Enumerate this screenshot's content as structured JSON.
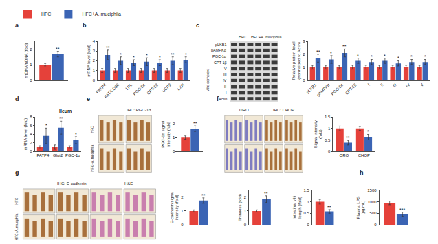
{
  "chart_data": [
    {
      "type": "bar",
      "label": "a",
      "ylabel": "mtDNA/nDNA (fold)",
      "categories": [
        null
      ],
      "grid": false,
      "ylim": [
        0,
        2.5
      ],
      "yticks": [
        0,
        1,
        2
      ],
      "series": [
        {
          "name": "HFC",
          "color": "#e5413a",
          "values": [
            1.0
          ],
          "errors": [
            0.08
          ]
        },
        {
          "name": "HFC+A. muciphila",
          "color": "#3b64b4",
          "values": [
            1.68
          ],
          "errors": [
            0.18
          ]
        }
      ],
      "annotations": [
        "**"
      ]
    },
    {
      "type": "bar",
      "label": "b",
      "ylabel": "mRNA level (fold)",
      "grid": false,
      "categories": [
        "FATP4",
        "FAT/CD36",
        "LPL",
        "PGC-1α",
        "CPT-1β",
        "UCP2",
        "LXR"
      ],
      "ylim": [
        0,
        4
      ],
      "yticks": [
        0,
        1,
        2,
        3,
        4
      ],
      "series": [
        {
          "name": "HFC",
          "color": "#e5413a",
          "values": [
            1,
            1,
            1,
            1,
            1,
            1,
            1
          ],
          "errors": [
            0.2,
            0.2,
            0.2,
            0.2,
            0.2,
            0.2,
            0.2
          ]
        },
        {
          "name": "HFC+A. muciphila",
          "color": "#3b64b4",
          "values": [
            2.6,
            2.0,
            1.8,
            1.9,
            1.8,
            2.0,
            2.1
          ],
          "errors": [
            0.5,
            0.4,
            0.3,
            0.4,
            0.3,
            0.4,
            0.3
          ]
        }
      ],
      "annotations": [
        "**",
        "*",
        "*",
        "*",
        "*",
        "**",
        "*"
      ]
    },
    {
      "type": "bar",
      "ylabel": "Relative protein level\n(normalized to Actin)",
      "grid": false,
      "categories": [
        "pLKB1",
        "pAMPKα",
        "PGC-1α",
        "CPT-1β",
        "I",
        "II",
        "III",
        "IV",
        "V"
      ],
      "ylim": [
        0,
        3
      ],
      "yticks": [
        0,
        1,
        2,
        3
      ],
      "series": [
        {
          "name": "HFC",
          "color": "#e5413a",
          "values": [
            1,
            1,
            1,
            1,
            1,
            1,
            1,
            1,
            1
          ],
          "errors": [
            0.15,
            0.15,
            0.15,
            0.15,
            0.15,
            0.15,
            0.15,
            0.15,
            0.15
          ]
        },
        {
          "name": "HFC+A. muciphila",
          "color": "#3b64b4",
          "values": [
            1.7,
            1.6,
            2.1,
            1.5,
            1.4,
            1.5,
            1.3,
            1.4,
            1.4
          ],
          "errors": [
            0.3,
            0.3,
            0.3,
            0.2,
            0.2,
            0.2,
            0.2,
            0.2,
            0.2
          ]
        }
      ],
      "annotations": [
        "**",
        "*",
        "**",
        "*",
        "*",
        "*",
        "*",
        "*",
        "*"
      ]
    },
    {
      "type": "bar",
      "label": "d",
      "title": "Ileum",
      "ylabel": "mRNA level (fold)",
      "grid": false,
      "categories": [
        "FATP4",
        "Glut2",
        "PGC-1α"
      ],
      "ylim": [
        0,
        8
      ],
      "yticks": [
        0,
        2,
        4,
        6,
        8
      ],
      "series": [
        {
          "name": "HFC",
          "color": "#e5413a",
          "values": [
            1,
            1,
            1
          ],
          "errors": [
            0.3,
            0.5,
            0.3
          ]
        },
        {
          "name": "HFC+A. muciphila",
          "color": "#3b64b4",
          "values": [
            3.6,
            5.5,
            2.6
          ],
          "errors": [
            1.8,
            1.5,
            0.8
          ]
        }
      ],
      "annotations": [
        "*",
        "**",
        "*"
      ]
    },
    {
      "type": "bar",
      "ylabel": "PGC-1α signal\nintensity (fold)",
      "categories": [
        null
      ],
      "grid": false,
      "ylim": [
        0,
        2.5
      ],
      "yticks": [
        0,
        1,
        2
      ],
      "series": [
        {
          "name": "HFC",
          "color": "#e5413a",
          "values": [
            1.0
          ],
          "errors": [
            0.12
          ]
        },
        {
          "name": "HFC+A. muciphila",
          "color": "#3b64b4",
          "values": [
            1.65
          ],
          "errors": [
            0.2
          ]
        }
      ],
      "annotations": [
        "**"
      ]
    },
    {
      "type": "bar",
      "ylabel": "Signal intensity\n(fold)",
      "categories": [
        "ORO",
        "CHOP"
      ],
      "grid": false,
      "ylim": [
        0,
        1.5
      ],
      "yticks": [
        0,
        0.5,
        1,
        1.5
      ],
      "series": [
        {
          "name": "HFC",
          "color": "#e5413a",
          "values": [
            1,
            1
          ],
          "errors": [
            0.1,
            0.08
          ]
        },
        {
          "name": "HFC+A. muciphila",
          "color": "#3b64b4",
          "values": [
            0.38,
            0.62
          ],
          "errors": [
            0.1,
            0.12
          ]
        }
      ],
      "annotations": [
        "**",
        "*"
      ]
    },
    {
      "type": "bar",
      "ylabel": "E-cadherin signal\nintensity (fold)",
      "categories": [
        null
      ],
      "grid": false,
      "ylim": [
        0,
        2.5
      ],
      "yticks": [
        0,
        1,
        2
      ],
      "series": [
        {
          "name": "HFC",
          "color": "#e5413a",
          "values": [
            1.0
          ],
          "errors": [
            0.08
          ]
        },
        {
          "name": "HFC+A. muciphila",
          "color": "#3b64b4",
          "values": [
            1.75
          ],
          "errors": [
            0.2
          ]
        }
      ],
      "annotations": [
        "**"
      ]
    },
    {
      "type": "bar",
      "ylabel": "Thinness (fold)",
      "categories": [
        null
      ],
      "grid": false,
      "ylim": [
        0,
        2.5
      ],
      "yticks": [
        0,
        1,
        2
      ],
      "series": [
        {
          "name": "HFC",
          "color": "#e5413a",
          "values": [
            1.0
          ],
          "errors": [
            0.08
          ]
        },
        {
          "name": "HFC+A. muciphila",
          "color": "#3b64b4",
          "values": [
            1.85
          ],
          "errors": [
            0.25
          ]
        }
      ],
      "annotations": [
        "**"
      ]
    },
    {
      "type": "bar",
      "ylabel": "Intestinal villi\nlength (fold)",
      "categories": [
        null
      ],
      "grid": false,
      "ylim": [
        0,
        1.5
      ],
      "yticks": [
        0,
        0.5,
        1,
        1.5
      ],
      "series": [
        {
          "name": "HFC",
          "color": "#e5413a",
          "values": [
            1.0
          ],
          "errors": [
            0.1
          ]
        },
        {
          "name": "HFC+A. muciphila",
          "color": "#3b64b4",
          "values": [
            0.58
          ],
          "errors": [
            0.08
          ]
        }
      ],
      "annotations": [
        "**"
      ]
    },
    {
      "type": "bar",
      "label": "h",
      "ylabel": "Plasma LPS\n(pg/mL)",
      "categories": [
        null
      ],
      "grid": false,
      "ylim": [
        0,
        1500
      ],
      "yticks": [
        0,
        500,
        1000,
        1500
      ],
      "series": [
        {
          "name": "HFC",
          "color": "#e5413a",
          "values": [
            950
          ],
          "errors": [
            80
          ]
        },
        {
          "name": "HFC+A. muciphila",
          "color": "#3b64b4",
          "values": [
            460
          ],
          "errors": [
            90
          ]
        }
      ],
      "annotations": [
        "***"
      ]
    }
  ],
  "images": [
    {
      "label": "c",
      "type": "blot",
      "columns": [
        "HFC",
        "HFC+A. muciphila"
      ],
      "rows": [
        "pLKB1",
        "pAMPKα",
        "PGC-1α",
        "CPT-1β"
      ],
      "mito": {
        "title": "Mito complex",
        "rows": [
          "V",
          "III",
          "IV",
          "II",
          "I"
        ]
      },
      "loading": "Actin"
    },
    {
      "label": "e",
      "type": "ihc",
      "rows": [
        "HFC",
        "HFC+A. muciphila"
      ],
      "columns": [
        {
          "title": "IHC: PGC-1α",
          "color": "#a8703c"
        }
      ]
    },
    {
      "label": "f",
      "type": "ihc",
      "columns": [
        {
          "title": "ORO",
          "color": "#7f7cc0"
        },
        {
          "title": "IHC: CHOP",
          "color": "#a8703c"
        }
      ]
    },
    {
      "label": "g",
      "type": "ihc",
      "rows": [
        "HFC",
        "HFC+A. muciphila"
      ],
      "columns": [
        {
          "title": "IHC: E-cadherin",
          "color": "#a8703c"
        },
        {
          "title": "H&E",
          "color": "#c97fae"
        }
      ]
    }
  ]
}
